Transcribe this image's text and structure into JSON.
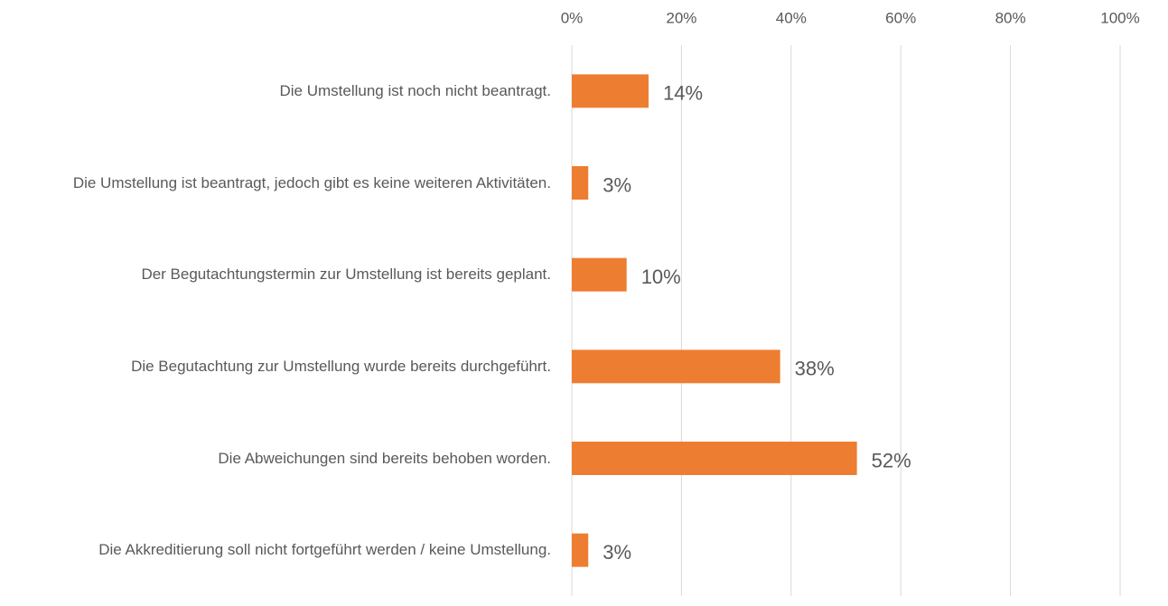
{
  "chart_data": {
    "type": "bar",
    "orientation": "horizontal",
    "categories": [
      "Die Umstellung ist noch nicht beantragt.",
      "Die Umstellung ist beantragt, jedoch gibt es keine weiteren Aktivitäten.",
      "Der Begutachtungstermin zur Umstellung ist bereits geplant.",
      "Die Begutachtung zur Umstellung wurde bereits durchgeführt.",
      "Die Abweichungen sind bereits behoben worden.",
      "Die Akkreditierung soll nicht fortgeführt werden / keine Umstellung."
    ],
    "values": [
      14,
      3,
      10,
      38,
      52,
      3
    ],
    "value_labels": [
      "14%",
      "3%",
      "10%",
      "38%",
      "52%",
      "3%"
    ],
    "color": "#ed7d31",
    "xlim": [
      0,
      100
    ],
    "xticks": [
      {
        "value": 0,
        "label": "0%"
      },
      {
        "value": 20,
        "label": "20%"
      },
      {
        "value": 40,
        "label": "40%"
      },
      {
        "value": 60,
        "label": "60%"
      },
      {
        "value": 80,
        "label": "80%"
      },
      {
        "value": 100,
        "label": "100%"
      }
    ],
    "grid": true
  }
}
